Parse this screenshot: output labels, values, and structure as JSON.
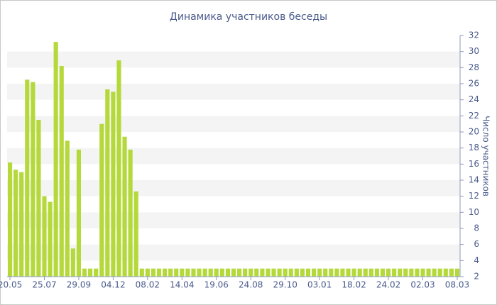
{
  "chart_data": {
    "type": "bar",
    "title": "Динамика участников беседы",
    "y_label": "Число участников",
    "categories": [
      "20.05",
      null,
      null,
      null,
      null,
      null,
      "25.07",
      null,
      null,
      null,
      null,
      null,
      "29.09",
      null,
      null,
      null,
      null,
      null,
      "04.12",
      null,
      null,
      null,
      null,
      null,
      "08.02",
      null,
      null,
      null,
      null,
      null,
      "14.04",
      null,
      null,
      null,
      null,
      null,
      "19.06",
      null,
      null,
      null,
      null,
      null,
      "24.08",
      null,
      null,
      null,
      null,
      null,
      "29.10",
      null,
      null,
      null,
      null,
      null,
      "03.01",
      null,
      null,
      null,
      null,
      null,
      "18.02",
      null,
      null,
      null,
      null,
      null,
      "24.02",
      null,
      null,
      null,
      null,
      null,
      "02.03",
      null,
      null,
      null,
      null,
      null,
      "08.03"
    ],
    "values": [
      16.2,
      15.3,
      15,
      26.5,
      26.2,
      21.5,
      12,
      11.3,
      31.2,
      28.2,
      18.9,
      5.5,
      17.8,
      3,
      3,
      3,
      21,
      25.3,
      25,
      28.9,
      19.4,
      17.8,
      12.6,
      3,
      3,
      3,
      3,
      3,
      3,
      3,
      3,
      3,
      3,
      3,
      3,
      3,
      3,
      3,
      3,
      3,
      3,
      3,
      3,
      3,
      3,
      3,
      3,
      3,
      3,
      3,
      3,
      3,
      3,
      3,
      3,
      3,
      3,
      3,
      3,
      3,
      3,
      3,
      3,
      3,
      3,
      3,
      3,
      3,
      3,
      3,
      3,
      3,
      3,
      3,
      3,
      3,
      3,
      3,
      3
    ],
    "color": "#b5d93b",
    "ylim": [
      2,
      32
    ],
    "yticks": [
      2,
      4,
      6,
      8,
      10,
      12,
      14,
      16,
      18,
      20,
      22,
      24,
      26,
      28,
      30,
      32
    ],
    "grid": true,
    "y_axis_side": "right"
  }
}
